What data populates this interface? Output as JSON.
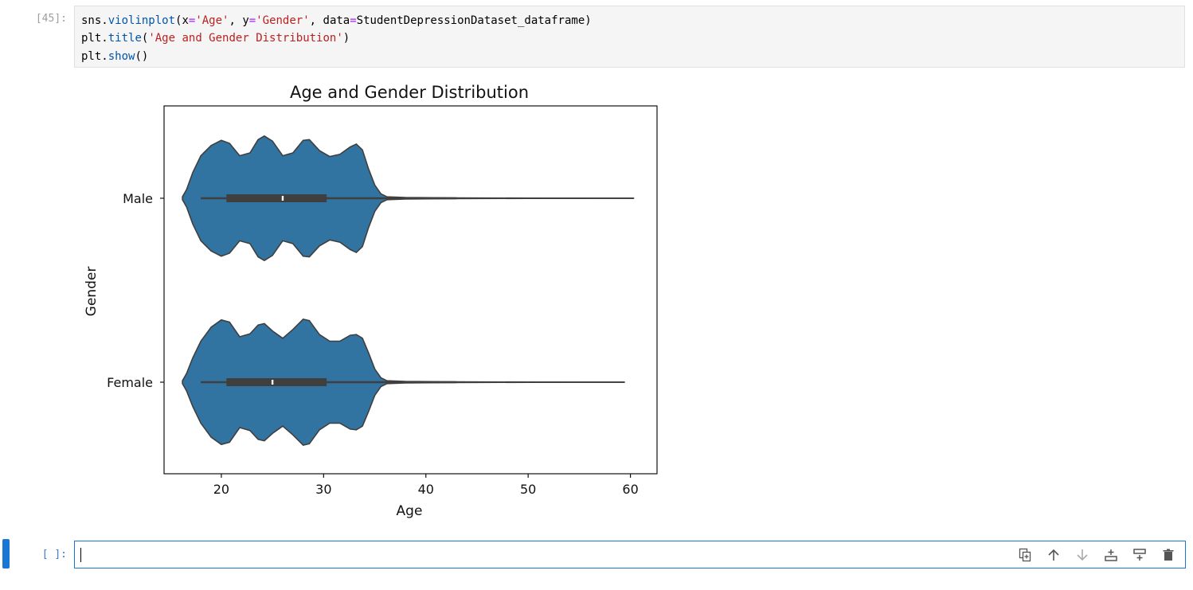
{
  "notebook": {
    "cell1_prompt": "[45]:",
    "cell2_prompt": "[ ]:"
  },
  "code": {
    "line1": [
      {
        "t": "sns",
        "c": "plain"
      },
      {
        "t": ".",
        "c": "plain"
      },
      {
        "t": "violinplot",
        "c": "fn"
      },
      {
        "t": "(x",
        "c": "plain"
      },
      {
        "t": "=",
        "c": "op"
      },
      {
        "t": "'Age'",
        "c": "str"
      },
      {
        "t": ", y",
        "c": "plain"
      },
      {
        "t": "=",
        "c": "op"
      },
      {
        "t": "'Gender'",
        "c": "str"
      },
      {
        "t": ", data",
        "c": "plain"
      },
      {
        "t": "=",
        "c": "op"
      },
      {
        "t": "StudentDepressionDataset_dataframe)",
        "c": "plain"
      }
    ],
    "line2": [
      {
        "t": "plt",
        "c": "plain"
      },
      {
        "t": ".",
        "c": "plain"
      },
      {
        "t": "title",
        "c": "fn"
      },
      {
        "t": "(",
        "c": "plain"
      },
      {
        "t": "'Age and Gender Distribution'",
        "c": "str"
      },
      {
        "t": ")",
        "c": "plain"
      }
    ],
    "line3": [
      {
        "t": "plt",
        "c": "plain"
      },
      {
        "t": ".",
        "c": "plain"
      },
      {
        "t": "show",
        "c": "fn"
      },
      {
        "t": "()",
        "c": "plain"
      }
    ]
  },
  "chart_data": {
    "type": "violin",
    "title": "Age and Gender Distribution",
    "xlabel": "Age",
    "ylabel": "Gender",
    "xlim": [
      14.4,
      62.6
    ],
    "xticks": [
      20,
      30,
      40,
      50,
      60
    ],
    "categories": [
      "Male",
      "Female"
    ],
    "fill_color": "#3274a1",
    "series": [
      {
        "name": "Male",
        "whisker_min": 18,
        "q1": 20.5,
        "median": 26,
        "q3": 30.3,
        "whisker_max": 43,
        "max": 59,
        "kde_range": [
          16.2,
          60.3
        ],
        "density": [
          [
            16.2,
            0.02
          ],
          [
            16.6,
            0.12
          ],
          [
            17.2,
            0.35
          ],
          [
            18.0,
            0.58
          ],
          [
            19.0,
            0.72
          ],
          [
            20.0,
            0.79
          ],
          [
            20.8,
            0.75
          ],
          [
            21.8,
            0.58
          ],
          [
            22.8,
            0.62
          ],
          [
            23.6,
            0.8
          ],
          [
            24.2,
            0.85
          ],
          [
            25.0,
            0.78
          ],
          [
            26.0,
            0.58
          ],
          [
            27.0,
            0.62
          ],
          [
            28.0,
            0.79
          ],
          [
            28.6,
            0.8
          ],
          [
            29.6,
            0.65
          ],
          [
            30.6,
            0.57
          ],
          [
            31.6,
            0.6
          ],
          [
            32.6,
            0.7
          ],
          [
            33.2,
            0.74
          ],
          [
            33.8,
            0.66
          ],
          [
            34.4,
            0.4
          ],
          [
            35.0,
            0.18
          ],
          [
            35.6,
            0.06
          ],
          [
            36.2,
            0.02
          ],
          [
            38.0,
            0.01
          ],
          [
            43.0,
            0.004
          ],
          [
            50.0,
            0.002
          ],
          [
            60.3,
            0.001
          ]
        ]
      },
      {
        "name": "Female",
        "whisker_min": 18,
        "q1": 20.5,
        "median": 25,
        "q3": 30.3,
        "whisker_max": 43,
        "max": 59,
        "kde_range": [
          16.2,
          59.4
        ],
        "density": [
          [
            16.2,
            0.02
          ],
          [
            16.6,
            0.12
          ],
          [
            17.2,
            0.33
          ],
          [
            18.0,
            0.56
          ],
          [
            19.0,
            0.75
          ],
          [
            20.0,
            0.85
          ],
          [
            20.8,
            0.82
          ],
          [
            21.8,
            0.62
          ],
          [
            22.8,
            0.66
          ],
          [
            23.6,
            0.78
          ],
          [
            24.2,
            0.8
          ],
          [
            25.0,
            0.7
          ],
          [
            26.0,
            0.6
          ],
          [
            27.0,
            0.72
          ],
          [
            28.0,
            0.86
          ],
          [
            28.6,
            0.84
          ],
          [
            29.6,
            0.65
          ],
          [
            30.6,
            0.56
          ],
          [
            31.6,
            0.56
          ],
          [
            32.6,
            0.64
          ],
          [
            33.2,
            0.65
          ],
          [
            33.8,
            0.6
          ],
          [
            34.4,
            0.4
          ],
          [
            35.0,
            0.18
          ],
          [
            35.6,
            0.06
          ],
          [
            36.2,
            0.02
          ],
          [
            38.0,
            0.01
          ],
          [
            43.0,
            0.004
          ],
          [
            50.0,
            0.002
          ],
          [
            59.4,
            0.001
          ]
        ]
      }
    ]
  },
  "toolbar": {
    "icons": [
      "duplicate-icon",
      "move-up-icon",
      "move-down-icon",
      "insert-above-icon",
      "insert-below-icon",
      "delete-icon"
    ]
  }
}
